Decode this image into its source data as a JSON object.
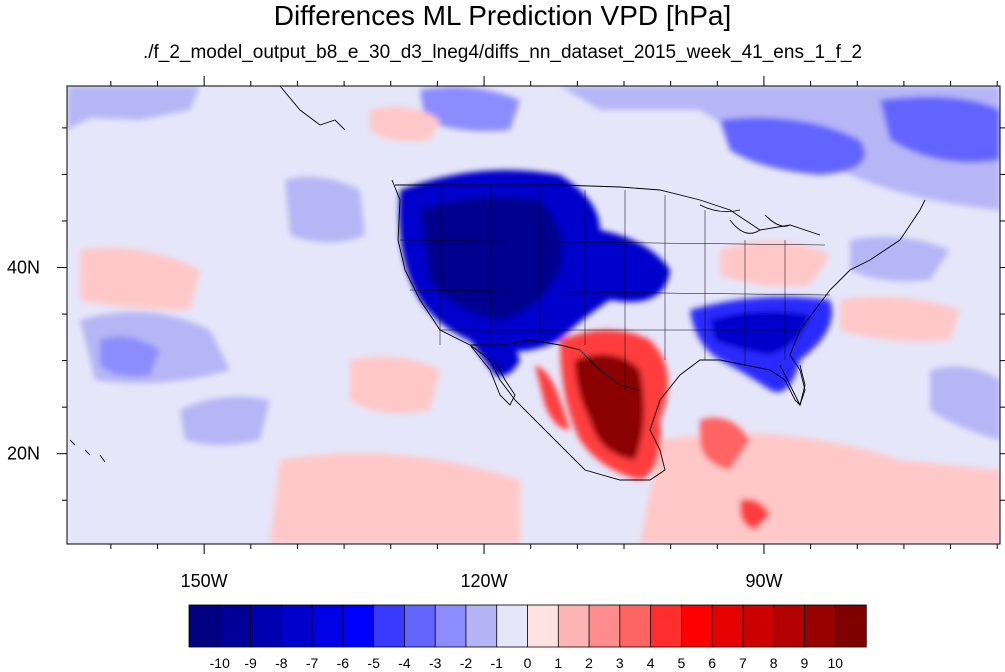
{
  "title": "Differences ML Prediction VPD [hPa]",
  "subtitle": "./f_2_model_output_b8_e_30_d3_lneg4/diffs_nn_dataset_2015_week_41_ens_1_f_2",
  "map": {
    "projection": "lat-lon",
    "lon_range": [
      -164.7,
      -64.7
    ],
    "lat_range": [
      10.3,
      59.5
    ],
    "lon_ticks": [
      {
        "value": -150,
        "label": "150W"
      },
      {
        "value": -120,
        "label": "120W"
      },
      {
        "value": -90,
        "label": "90W"
      }
    ],
    "lat_ticks": [
      {
        "value": 40,
        "label": "40N"
      },
      {
        "value": 20,
        "label": "20N"
      }
    ],
    "field_colors": {
      "strong_negative": "#00008f",
      "negative": "#2b2bff",
      "slight_negative": "#b6b6f6",
      "near_zero": "#e6e6fa",
      "slight_positive": "#ffc8c8",
      "positive": "#ff3c3c",
      "strong_positive": "#8b0000"
    }
  },
  "colorbar": {
    "labels": [
      "-10",
      "-9",
      "-8",
      "-7",
      "-6",
      "-5",
      "-4",
      "-3",
      "-2",
      "-1",
      "0",
      "1",
      "2",
      "3",
      "4",
      "5",
      "6",
      "7",
      "8",
      "9",
      "10"
    ],
    "colors": [
      "#000080",
      "#000099",
      "#0000b3",
      "#0000cc",
      "#0000e6",
      "#0000ff",
      "#3a3aff",
      "#6464ff",
      "#8c8cff",
      "#b4b4f5",
      "#e6e6fa",
      "#ffe1e1",
      "#ffb4b4",
      "#ff8c8c",
      "#ff6464",
      "#ff2d2d",
      "#ff0000",
      "#e60000",
      "#cc0000",
      "#b30000",
      "#990000",
      "#800000"
    ]
  }
}
